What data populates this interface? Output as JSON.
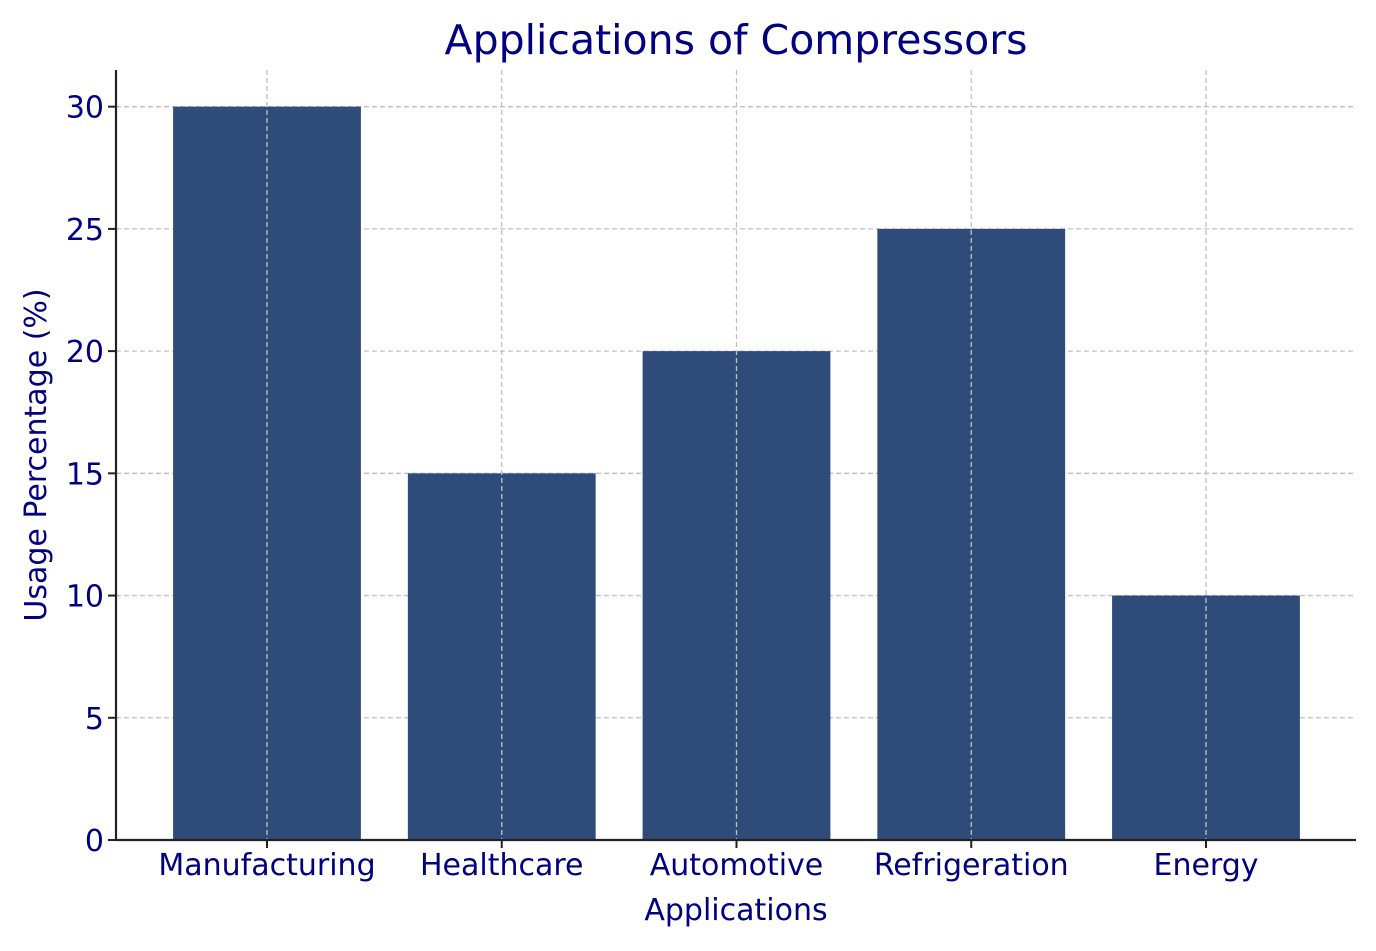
{
  "chart_data": {
    "type": "bar",
    "title": "Applications of Compressors",
    "xlabel": "Applications",
    "ylabel": "Usage Percentage (%)",
    "categories": [
      "Manufacturing",
      "Healthcare",
      "Automotive",
      "Refrigeration",
      "Energy"
    ],
    "values": [
      30,
      15,
      20,
      25,
      10
    ],
    "ylim": [
      0,
      31.5
    ],
    "yticks": [
      0,
      5,
      10,
      15,
      20,
      25,
      30
    ],
    "grid": true,
    "grid_style": "dashed",
    "bar_color": "#2f4b7a",
    "text_color": "#000080",
    "grid_color": "#c0c0c0",
    "axis_color": "#222222"
  }
}
